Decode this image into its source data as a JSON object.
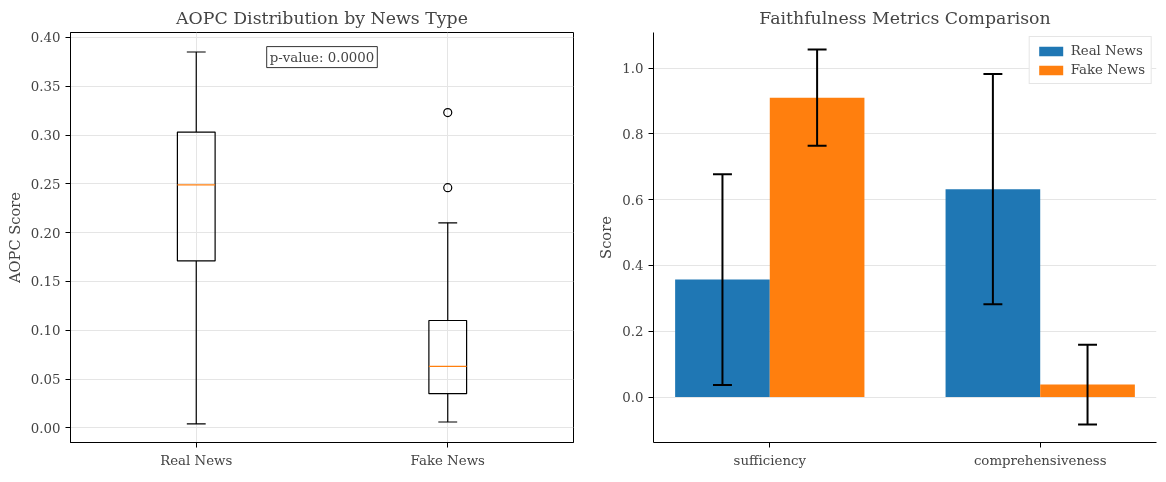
{
  "chart_data": [
    {
      "type": "box",
      "title": "AOPC Distribution by News Type",
      "ylabel": "AOPC Score",
      "categories": [
        "Real News",
        "Fake News"
      ],
      "boxes": [
        {
          "low": 0.004,
          "q1": 0.171,
          "median": 0.249,
          "q3": 0.303,
          "high": 0.385
        },
        {
          "low": 0.006,
          "q1": 0.035,
          "median": 0.063,
          "q3": 0.11,
          "high": 0.21,
          "outliers": [
            0.246,
            0.323
          ]
        }
      ],
      "ylim": [
        -0.015,
        0.405
      ],
      "yticks": [
        {
          "value": 0,
          "label": "0.00"
        },
        {
          "value": 0.05,
          "label": "0.05"
        },
        {
          "value": 0.1,
          "label": "0.10"
        },
        {
          "value": 0.15,
          "label": "0.15"
        },
        {
          "value": 0.2,
          "label": "0.20"
        },
        {
          "value": 0.25,
          "label": "0.25"
        },
        {
          "value": 0.3,
          "label": "0.30"
        },
        {
          "value": 0.35,
          "label": "0.35"
        },
        {
          "value": 0.4,
          "label": "0.40"
        }
      ],
      "grid": true,
      "annotations": [
        "p-value: 0.0000"
      ]
    },
    {
      "type": "bar",
      "title": "Faithfulness Metrics Comparison",
      "ylabel": "Score",
      "categories": [
        "sufficiency",
        "comprehensiveness"
      ],
      "series": [
        {
          "name": "Real News",
          "color": "#1f77b4",
          "values": [
            0.357,
            0.632
          ],
          "errors": [
            0.32,
            0.35
          ]
        },
        {
          "name": "Fake News",
          "color": "#ff7f0e",
          "values": [
            0.91,
            0.038
          ],
          "errors": [
            0.146,
            0.121
          ]
        }
      ],
      "ylim": [
        -0.138,
        1.108
      ],
      "yticks": [
        {
          "value": 0,
          "label": "0.0"
        },
        {
          "value": 0.2,
          "label": "0.2"
        },
        {
          "value": 0.4,
          "label": "0.4"
        },
        {
          "value": 0.6,
          "label": "0.6"
        },
        {
          "value": 0.8,
          "label": "0.8"
        },
        {
          "value": 1.0,
          "label": "1.0"
        }
      ],
      "grid": "y",
      "legend": "top right"
    }
  ]
}
